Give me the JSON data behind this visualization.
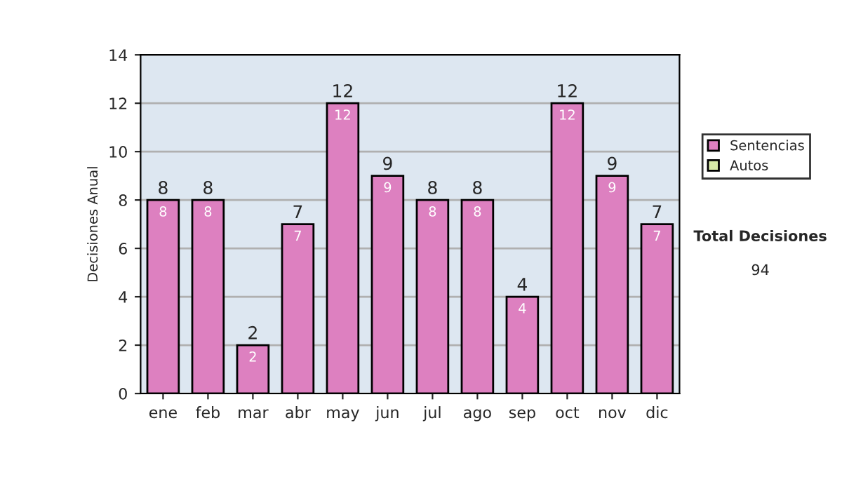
{
  "chart_data": {
    "type": "bar",
    "stacked": true,
    "ylabel": "Decisiones Anual",
    "categories": [
      "ene",
      "feb",
      "mar",
      "abr",
      "may",
      "jun",
      "jul",
      "ago",
      "sep",
      "oct",
      "nov",
      "dic"
    ],
    "series": [
      {
        "name": "Sentencias",
        "color": "#dd80c0",
        "values": [
          8,
          8,
          2,
          7,
          12,
          9,
          8,
          8,
          4,
          12,
          9,
          7
        ],
        "value_labels": [
          "8",
          "8",
          "2",
          "7",
          "12",
          "9",
          "8",
          "8",
          "4",
          "12",
          "9",
          "7"
        ]
      },
      {
        "name": "Autos",
        "color": "#d8eaa8",
        "values": [
          0,
          0,
          0,
          0,
          0,
          0,
          0,
          0,
          0,
          0,
          0,
          0
        ]
      }
    ],
    "ylim": [
      0,
      14
    ],
    "yticks": [
      0,
      2,
      4,
      6,
      8,
      10,
      12,
      14
    ],
    "grid": "y",
    "legend": "right",
    "totals": [
      "8",
      "8",
      "2",
      "7",
      "12",
      "9",
      "8",
      "8",
      "4",
      "12",
      "9",
      "7"
    ],
    "annotations": [
      "Total Decisiones",
      "94"
    ]
  }
}
